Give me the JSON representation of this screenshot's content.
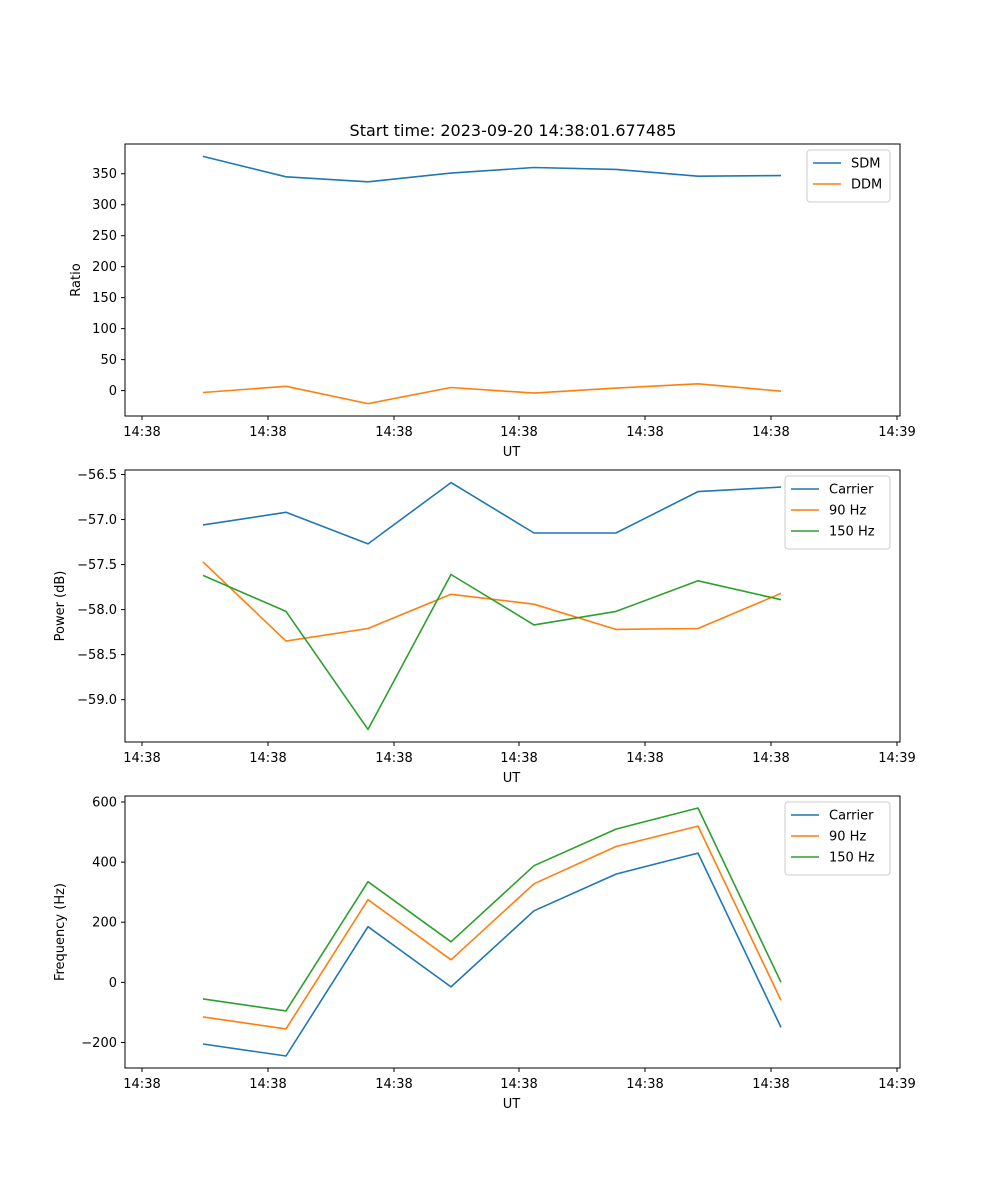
{
  "title": "Start time: 2023-09-20 14:38:01.677485",
  "chart_data": [
    {
      "type": "line",
      "xlabel": "UT",
      "ylabel": "Ratio",
      "x_tick_labels": [
        "14:38",
        "14:38",
        "14:38",
        "14:38",
        "14:38",
        "14:38",
        "14:38",
        "14:39"
      ],
      "y_ticks": [
        0,
        50,
        100,
        150,
        200,
        250,
        300,
        350
      ],
      "y_tick_labels": [
        "0",
        "50",
        "100",
        "150",
        "200",
        "250",
        "300",
        "350"
      ],
      "ylim": [
        -41,
        398
      ],
      "legend_position": "upper right",
      "series": [
        {
          "name": "SDM",
          "color": "#1f77b4",
          "values": [
            378,
            345,
            337,
            351,
            360,
            357,
            346,
            347
          ]
        },
        {
          "name": "DDM",
          "color": "#ff7f0e",
          "values": [
            -3,
            7,
            -21,
            5,
            -4,
            4,
            11,
            -1
          ]
        }
      ]
    },
    {
      "type": "line",
      "xlabel": "UT",
      "ylabel": "Power (dB)",
      "x_tick_labels": [
        "14:38",
        "14:38",
        "14:38",
        "14:38",
        "14:38",
        "14:38",
        "14:38",
        "14:39"
      ],
      "y_ticks": [
        -59.0,
        -58.5,
        -58.0,
        -57.5,
        -57.0,
        -56.5
      ],
      "y_tick_labels": [
        "−59.0",
        "−58.5",
        "−58.0",
        "−57.5",
        "−57.0",
        "−56.5"
      ],
      "ylim": [
        -59.47,
        -56.45
      ],
      "legend_position": "upper right",
      "series": [
        {
          "name": "Carrier",
          "color": "#1f77b4",
          "values": [
            -57.06,
            -56.92,
            -57.27,
            -56.59,
            -57.15,
            -57.15,
            -56.69,
            -56.64
          ]
        },
        {
          "name": "90 Hz",
          "color": "#ff7f0e",
          "values": [
            -57.47,
            -58.35,
            -58.21,
            -57.83,
            -57.94,
            -58.22,
            -58.21,
            -57.82
          ]
        },
        {
          "name": "150 Hz",
          "color": "#2ca02c",
          "values": [
            -57.62,
            -58.02,
            -59.33,
            -57.61,
            -58.17,
            -58.02,
            -57.68,
            -57.89
          ]
        }
      ]
    },
    {
      "type": "line",
      "xlabel": "UT",
      "ylabel": "Frequency (Hz)",
      "x_tick_labels": [
        "14:38",
        "14:38",
        "14:38",
        "14:38",
        "14:38",
        "14:38",
        "14:38",
        "14:39"
      ],
      "y_ticks": [
        -200,
        0,
        200,
        400,
        600
      ],
      "y_tick_labels": [
        "−200",
        "0",
        "200",
        "400",
        "600"
      ],
      "ylim": [
        -285,
        620
      ],
      "legend_position": "upper right",
      "series": [
        {
          "name": "Carrier",
          "color": "#1f77b4",
          "values": [
            -205,
            -245,
            185,
            -15,
            238,
            360,
            430,
            -150
          ]
        },
        {
          "name": "90 Hz",
          "color": "#ff7f0e",
          "values": [
            -115,
            -155,
            275,
            75,
            328,
            452,
            520,
            -60
          ]
        },
        {
          "name": "150 Hz",
          "color": "#2ca02c",
          "values": [
            -55,
            -95,
            335,
            135,
            388,
            510,
            580,
            0
          ]
        }
      ]
    }
  ]
}
